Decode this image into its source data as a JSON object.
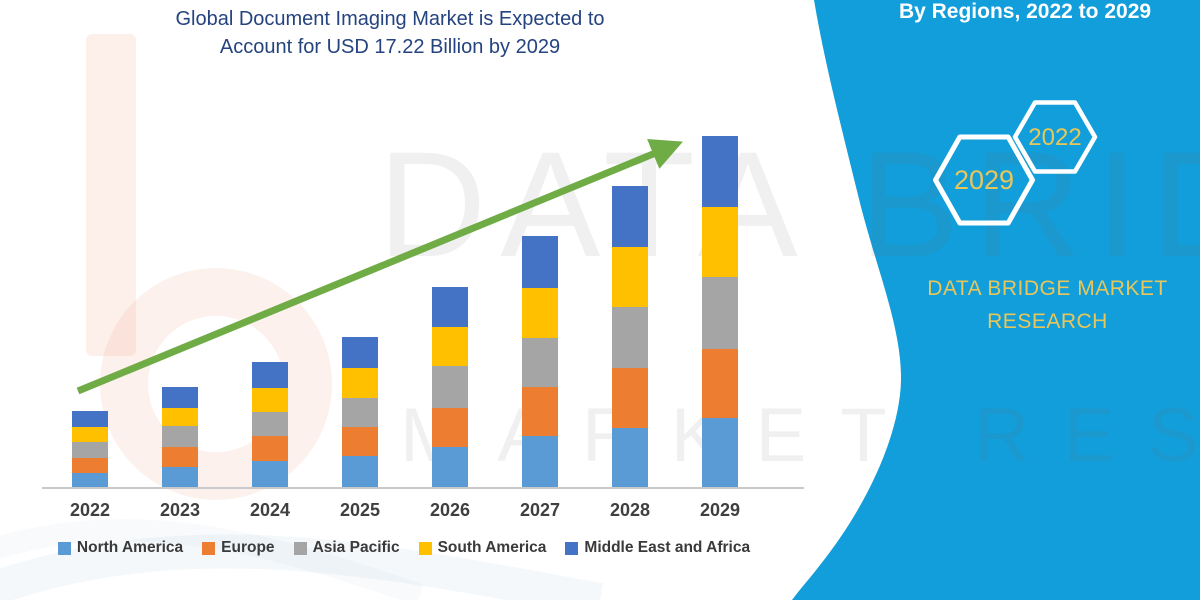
{
  "title": {
    "line1": "Global Document Imaging Market is Expected to",
    "line2": "Account for USD 17.22 Billion by 2029"
  },
  "side_panel": {
    "heading": "By Regions, 2022 to 2029",
    "hexagon_small_label": "2022",
    "hexagon_large_label": "2029",
    "brand_line1": "DATA BRIDGE MARKET",
    "brand_line2": "RESEARCH",
    "background_color": "#129EDA",
    "accent_text_color": "#E8C75A"
  },
  "watermark": {
    "line1": "DATA BRIDGE",
    "line2": "MARKET RESEARCH"
  },
  "chart_data": {
    "type": "bar",
    "stacked": true,
    "title": "Global Document Imaging Market is Expected to Account for USD 17.22 Billion by 2029",
    "unit": "USD Billion",
    "categories": [
      "2022",
      "2023",
      "2024",
      "2025",
      "2026",
      "2027",
      "2028",
      "2029"
    ],
    "series": [
      {
        "name": "North America",
        "color": "#5B9BD5",
        "values": [
          0.73,
          1.03,
          1.32,
          1.57,
          2.01,
          2.54,
          2.94,
          3.42
        ]
      },
      {
        "name": "Europe",
        "color": "#ED7D31",
        "values": [
          0.73,
          0.98,
          1.22,
          1.42,
          1.91,
          2.4,
          2.94,
          3.38
        ]
      },
      {
        "name": "Asia Pacific",
        "color": "#A5A5A5",
        "values": [
          0.78,
          1.03,
          1.17,
          1.42,
          2.05,
          2.4,
          2.98,
          3.52
        ]
      },
      {
        "name": "South America",
        "color": "#FFC000",
        "values": [
          0.73,
          0.88,
          1.17,
          1.47,
          1.91,
          2.45,
          2.94,
          3.42
        ]
      },
      {
        "name": "Middle East and Africa",
        "color": "#4472C4",
        "values": [
          0.78,
          1.03,
          1.27,
          1.52,
          1.96,
          2.54,
          2.98,
          3.47
        ]
      }
    ],
    "totals": [
      3.77,
      4.94,
      6.16,
      7.39,
      9.83,
      12.33,
      14.77,
      17.22
    ],
    "ylim": [
      0,
      18
    ],
    "grid": false,
    "y_axis_visible": false,
    "legend_position": "bottom",
    "annotations": [
      "green upward trend arrow from 2022 to 2029"
    ],
    "arrow_color": "#6FAC46"
  }
}
